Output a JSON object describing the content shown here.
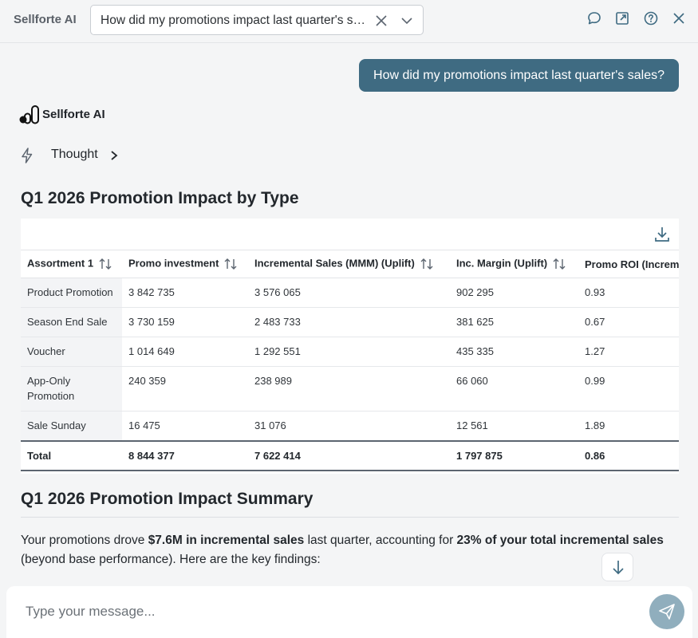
{
  "header": {
    "app_title": "Sellforte AI",
    "conversation_selected": "How did my promotions impact last quarter's sales?",
    "icons": [
      "close-icon",
      "chevron-down-icon",
      "chat-icon",
      "expand-icon",
      "help-icon",
      "close-window-icon"
    ]
  },
  "conversation": {
    "user_message": "How did my promotions impact last quarter's sales?",
    "ai_name": "Sellforte AI",
    "thought_label": "Thought"
  },
  "table_section": {
    "title": "Q1 2026 Promotion Impact by Type",
    "columns": [
      "Assortment 1",
      "Promo investment",
      "Incremental Sales (MMM) (Uplift)",
      "Inc. Margin (Uplift)",
      "Promo ROI (Incremental"
    ],
    "rows": [
      [
        "Product Promotion",
        "3 842 735",
        "3 576 065",
        "902 295",
        "0.93"
      ],
      [
        "Season End Sale",
        "3 730 159",
        "2 483 733",
        "381 625",
        "0.67"
      ],
      [
        "Voucher",
        "1 014 649",
        "1 292 551",
        "435 335",
        "1.27"
      ],
      [
        "App-Only Promotion",
        "240 359",
        "238 989",
        "66 060",
        "0.99"
      ],
      [
        "Sale Sunday",
        "16 475",
        "31 076",
        "12 561",
        "1.89"
      ]
    ],
    "total": [
      "Total",
      "8 844 377",
      "7 622 414",
      "1 797 875",
      "0.86"
    ]
  },
  "summary_section": {
    "title": "Q1 2026 Promotion Impact Summary",
    "text_1": "Your promotions drove ",
    "bold_1": "$7.6M in incremental sales",
    "text_2": " last quarter, accounting for ",
    "bold_2": "23% of your total incremental sales",
    "text_3": " (beyond base performance). Here are the key findings:"
  },
  "composer": {
    "placeholder": "Type your message..."
  },
  "colors": {
    "accent": "#3f6b82",
    "send_button": "#90aebd",
    "background": "#f4f5f6"
  }
}
